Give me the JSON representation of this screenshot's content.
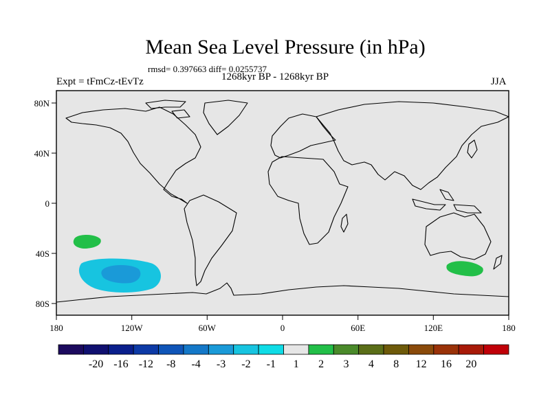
{
  "title": "Mean Sea Level Pressure (in hPa)",
  "stats": "rmsd= 0.397663 diff= 0.0255737",
  "left_label": "Expt = tFmCz-tEvTz",
  "center_label": "1268kyr BP - 1268kyr BP",
  "right_label": "JJA",
  "map": {
    "x_ticks": [
      "180",
      "120W",
      "60W",
      "0",
      "60E",
      "120E",
      "180"
    ],
    "y_ticks": [
      "80N",
      "40N",
      "0",
      "40S",
      "80S"
    ]
  },
  "colorbar": {
    "labels": [
      "-20",
      "-16",
      "-12",
      "-8",
      "-4",
      "-3",
      "-2",
      "-1",
      "1",
      "2",
      "3",
      "4",
      "8",
      "12",
      "16",
      "20"
    ],
    "colors": [
      "#1c0a5e",
      "#101070",
      "#0a1f8c",
      "#0d3aa6",
      "#0f55b8",
      "#1478c8",
      "#1a9ad8",
      "#17c4e0",
      "#0fdce6",
      "#e6e6e6",
      "#22bf48",
      "#4a8a2a",
      "#5a6e18",
      "#6e5a0a",
      "#8a4a0a",
      "#9a3208",
      "#a81a08",
      "#c00008"
    ]
  },
  "chart_data": {
    "type": "contour-map",
    "title": "Mean Sea Level Pressure (in hPa)",
    "units": "hPa",
    "season": "JJA",
    "experiment": "tFmCz-tEvTz",
    "period": "1268kyr BP - 1268kyr BP",
    "rmsd": 0.397663,
    "diff": 0.0255737,
    "lon_range": [
      -180,
      180
    ],
    "lat_range": [
      -90,
      90
    ],
    "anomalies": [
      {
        "region": "South Pacific ~150W 30S",
        "range": [
          1,
          2
        ]
      },
      {
        "region": "South Pacific ~120W 55S",
        "range": [
          -2,
          -1
        ]
      },
      {
        "region": "South Pacific core ~120W 55S",
        "range": [
          -3,
          -2
        ]
      },
      {
        "region": "South of Australia ~140E 50S",
        "range": [
          1,
          2
        ]
      }
    ]
  }
}
